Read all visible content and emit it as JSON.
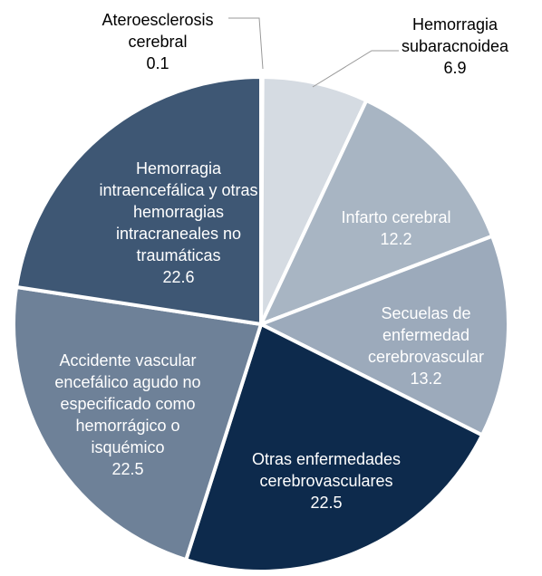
{
  "chart_data": {
    "type": "pie",
    "categories": [
      "Ateroesclerosis cerebral",
      "Hemorragia subaracnoidea",
      "Infarto cerebral",
      "Secuelas de enfermedad cerebrovascular",
      "Otras enfermedades cerebrovasculares",
      "Accidente vascular encefálico agudo no especificado como hemorrágico o isquémico",
      "Hemorragia intraencefálica y otras hemorragias intracraneales no traumáticas"
    ],
    "values": [
      0.1,
      6.9,
      12.2,
      13.2,
      22.5,
      22.5,
      22.6
    ],
    "colors": [
      "#000000",
      "#d5dbe2",
      "#a8b5c3",
      "#9caabb",
      "#0d2a4c",
      "#6e8198",
      "#3e5774"
    ]
  }
}
